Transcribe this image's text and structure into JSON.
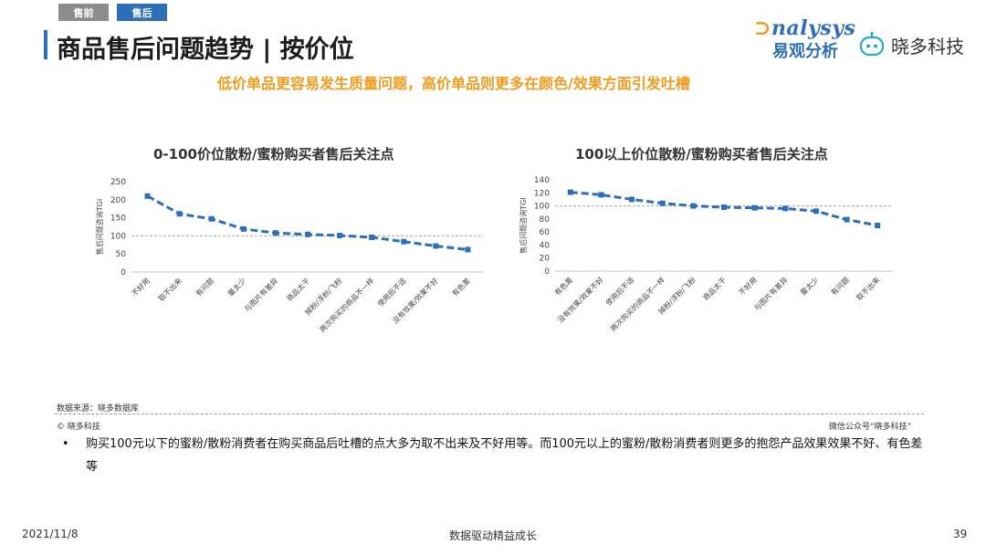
{
  "tabs": [
    "售前",
    "售后"
  ],
  "title": "商品售后问题趋势 | 按价位",
  "logos": {
    "analysys_brand": "nalysys",
    "analysys_cn": "易观分析",
    "xiaoduo": "晓多科技"
  },
  "headline": "低价单品更容易发生质量问题，高价单品则更多在颜色/效果方面引发吐槽",
  "chart_data": [
    {
      "type": "line",
      "title": "0-100价位散粉/蜜粉购买者售后关注点",
      "ylabel": "售后问题咨询TGI",
      "ylim": [
        0,
        250
      ],
      "yticks": [
        0,
        50,
        100,
        150,
        200,
        250
      ],
      "reference_line": 100,
      "grid": false,
      "categories": [
        "不好用",
        "取不出来",
        "有问题",
        "量太少",
        "与图片有差异",
        "商品太干",
        "掉粉/浮粉/飞粉",
        "两次购买的商品不一样",
        "使用后不适",
        "没有效果/效果不好",
        "有色差"
      ],
      "values": [
        210,
        161,
        147,
        119,
        108,
        104,
        101,
        96,
        84,
        72,
        62
      ],
      "color": "#2e6fb7"
    },
    {
      "type": "line",
      "title": "100以上价位散粉/蜜粉购买者售后关注点",
      "ylabel": "售后问题咨询TGI",
      "ylim": [
        0,
        140
      ],
      "yticks": [
        0,
        20,
        40,
        60,
        80,
        100,
        120,
        140
      ],
      "reference_line": 100,
      "grid": false,
      "categories": [
        "有色差",
        "没有效果/效果不好",
        "使用后不适",
        "两次购买的商品不一样",
        "掉粉/浮粉/飞粉",
        "商品太干",
        "不好用",
        "与图片有差异",
        "量太少",
        "有问题",
        "取不出来"
      ],
      "values": [
        121,
        117,
        110,
        104,
        100,
        98,
        97,
        96,
        92,
        79,
        70
      ],
      "color": "#2e6fb7"
    }
  ],
  "source_note": "数据来源：晓多数据库",
  "copyright": "© 晓多科技",
  "wechat_note": "微信公众号“晓多科技”",
  "bullet_symbol": "•",
  "bullet_text": "购买100元以下的蜜粉/散粉消费者在购买商品后吐槽的点大多为取不出来及不好用等。而100元以上的蜜粉/散粉消费者则更多的抱怨产品效果效果不好、有色差等",
  "footer": {
    "date": "2021/11/8",
    "slogan": "数据驱动精益成长",
    "page": "39"
  }
}
